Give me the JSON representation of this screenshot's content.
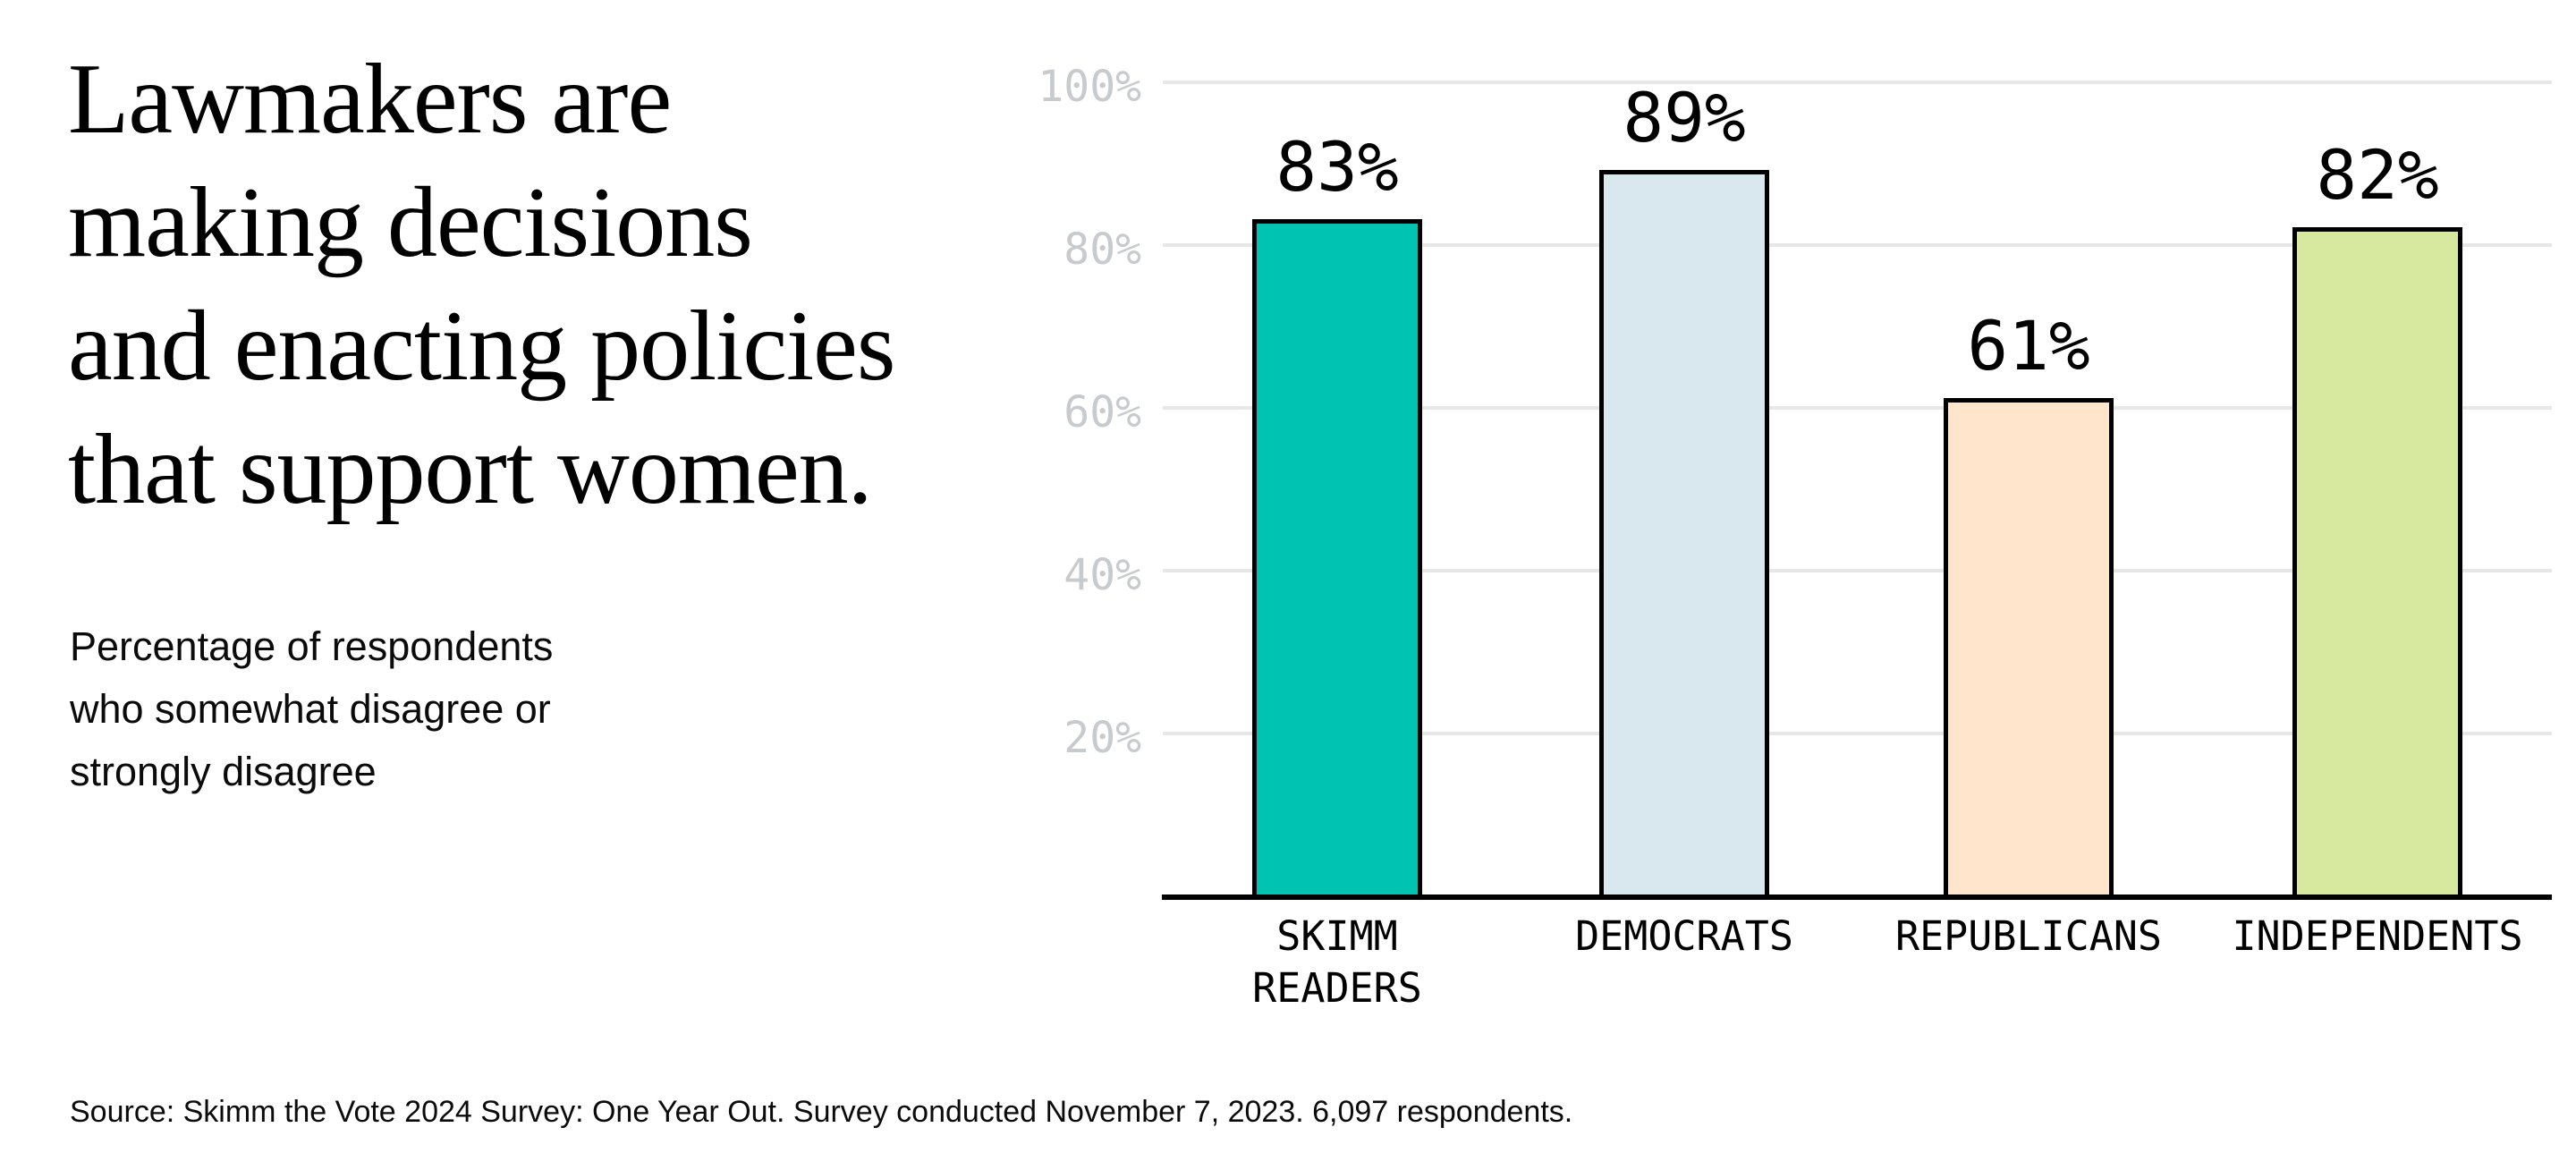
{
  "headline": "Lawmakers are\nmaking decisions\nand enacting policies\nthat support women.",
  "subtitle": "Percentage of respondents\nwho somewhat disagree or\nstrongly disagree",
  "source": "Source: Skimm the Vote 2024 Survey: One Year Out. Survey conducted November 7, 2023. 6,097 respondents.",
  "chart_data": {
    "type": "bar",
    "categories": [
      "SKIMM\nREADERS",
      "DEMOCRATS",
      "REPUBLICANS",
      "INDEPENDENTS"
    ],
    "values": [
      83,
      89,
      61,
      82
    ],
    "value_labels": [
      "83%",
      "89%",
      "61%",
      "82%"
    ],
    "bar_colors": [
      "#00C3B1",
      "#D9E8EF",
      "#FEE5CC",
      "#D6E99E"
    ],
    "bar_border_color": "#000000",
    "title": "",
    "xlabel": "",
    "ylabel": "",
    "ylim": [
      0,
      100
    ],
    "y_ticks": [
      100,
      80,
      60,
      40,
      20
    ],
    "y_tick_labels": [
      "100%",
      "80%",
      "60%",
      "40%",
      "20%"
    ],
    "grid": true,
    "gridline_color": "#E7E7E7",
    "axis_color": "#000000",
    "tick_label_color": "#C7CBCF",
    "legend": false
  }
}
